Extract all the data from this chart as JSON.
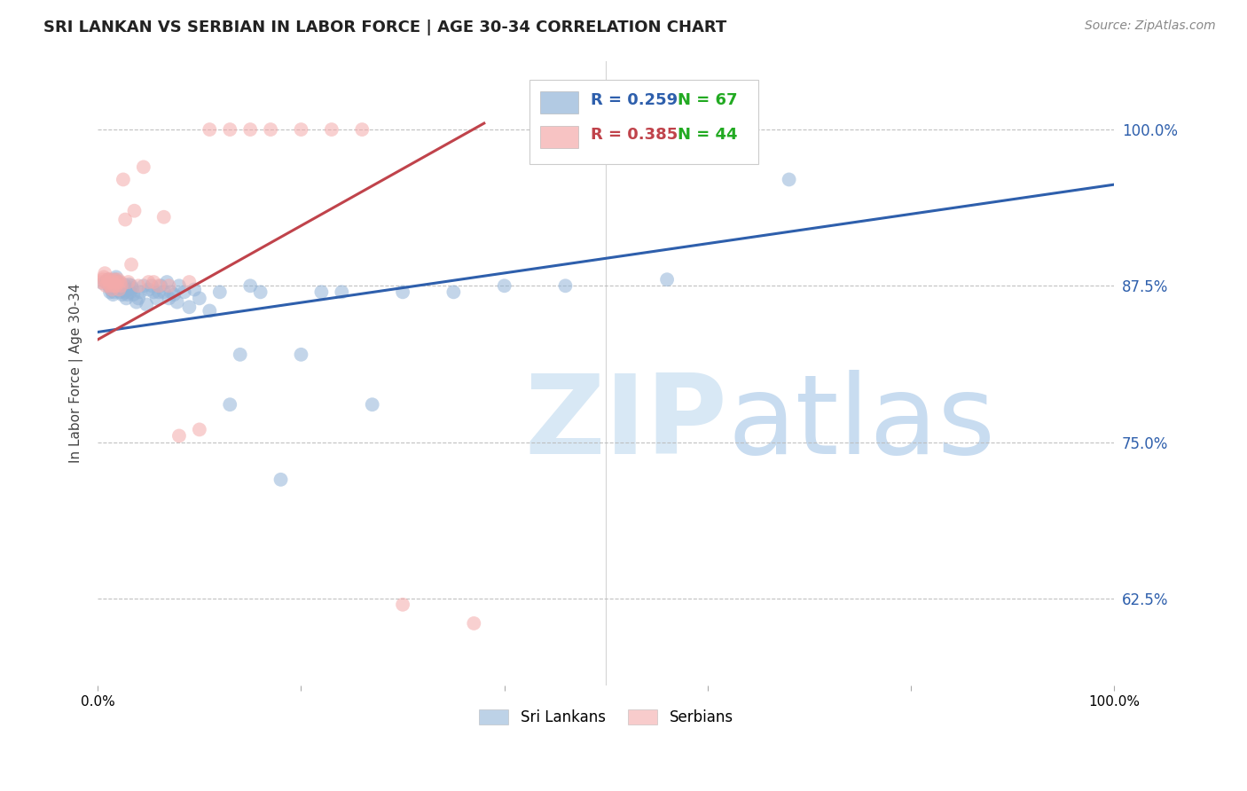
{
  "title": "SRI LANKAN VS SERBIAN IN LABOR FORCE | AGE 30-34 CORRELATION CHART",
  "source": "Source: ZipAtlas.com",
  "ylabel": "In Labor Force | Age 30-34",
  "ytick_labels": [
    "62.5%",
    "75.0%",
    "87.5%",
    "100.0%"
  ],
  "ytick_values": [
    0.625,
    0.75,
    0.875,
    1.0
  ],
  "xlim": [
    0.0,
    1.0
  ],
  "ylim": [
    0.555,
    1.055
  ],
  "legend_label_blue": "Sri Lankans",
  "legend_label_pink": "Serbians",
  "blue_color": "#92B4D8",
  "pink_color": "#F4AAAA",
  "blue_line_color": "#2E5FAC",
  "pink_line_color": "#C0434B",
  "blue_r": 0.259,
  "blue_n": 67,
  "pink_r": 0.385,
  "pink_n": 44,
  "blue_line_x0": 0.0,
  "blue_line_x1": 1.0,
  "blue_line_y0": 0.838,
  "blue_line_y1": 0.956,
  "pink_line_x0": 0.0,
  "pink_line_x1": 0.38,
  "pink_line_y0": 0.832,
  "pink_line_y1": 1.005,
  "blue_points_x": [
    0.005,
    0.008,
    0.01,
    0.011,
    0.012,
    0.013,
    0.014,
    0.015,
    0.016,
    0.017,
    0.018,
    0.019,
    0.02,
    0.021,
    0.022,
    0.023,
    0.024,
    0.025,
    0.026,
    0.027,
    0.028,
    0.029,
    0.03,
    0.031,
    0.032,
    0.033,
    0.034,
    0.035,
    0.038,
    0.04,
    0.042,
    0.045,
    0.048,
    0.05,
    0.053,
    0.055,
    0.058,
    0.06,
    0.062,
    0.065,
    0.068,
    0.07,
    0.072,
    0.075,
    0.078,
    0.08,
    0.085,
    0.09,
    0.095,
    0.1,
    0.11,
    0.12,
    0.13,
    0.14,
    0.15,
    0.16,
    0.18,
    0.2,
    0.22,
    0.24,
    0.27,
    0.3,
    0.35,
    0.4,
    0.46,
    0.56,
    0.68
  ],
  "blue_points_y": [
    0.877,
    0.878,
    0.88,
    0.875,
    0.87,
    0.872,
    0.876,
    0.868,
    0.87,
    0.88,
    0.882,
    0.875,
    0.878,
    0.873,
    0.87,
    0.875,
    0.868,
    0.872,
    0.876,
    0.87,
    0.865,
    0.868,
    0.872,
    0.876,
    0.87,
    0.875,
    0.873,
    0.868,
    0.862,
    0.865,
    0.87,
    0.875,
    0.86,
    0.872,
    0.875,
    0.87,
    0.865,
    0.87,
    0.875,
    0.87,
    0.878,
    0.865,
    0.87,
    0.868,
    0.862,
    0.875,
    0.87,
    0.858,
    0.872,
    0.865,
    0.855,
    0.87,
    0.78,
    0.82,
    0.875,
    0.87,
    0.72,
    0.82,
    0.87,
    0.87,
    0.78,
    0.87,
    0.87,
    0.875,
    0.875,
    0.88,
    0.96
  ],
  "pink_points_x": [
    0.003,
    0.005,
    0.006,
    0.007,
    0.008,
    0.009,
    0.01,
    0.011,
    0.012,
    0.013,
    0.014,
    0.015,
    0.016,
    0.017,
    0.018,
    0.019,
    0.02,
    0.021,
    0.022,
    0.023,
    0.025,
    0.027,
    0.03,
    0.033,
    0.036,
    0.04,
    0.045,
    0.05,
    0.055,
    0.06,
    0.065,
    0.07,
    0.08,
    0.09,
    0.1,
    0.11,
    0.13,
    0.15,
    0.17,
    0.2,
    0.23,
    0.26,
    0.3,
    0.37
  ],
  "pink_points_y": [
    0.878,
    0.88,
    0.882,
    0.885,
    0.875,
    0.877,
    0.88,
    0.878,
    0.875,
    0.88,
    0.872,
    0.878,
    0.875,
    0.88,
    0.875,
    0.878,
    0.88,
    0.872,
    0.878,
    0.875,
    0.96,
    0.928,
    0.878,
    0.892,
    0.935,
    0.875,
    0.97,
    0.878,
    0.878,
    0.875,
    0.93,
    0.875,
    0.755,
    0.878,
    0.76,
    1.0,
    1.0,
    1.0,
    1.0,
    1.0,
    1.0,
    1.0,
    0.62,
    0.605
  ]
}
